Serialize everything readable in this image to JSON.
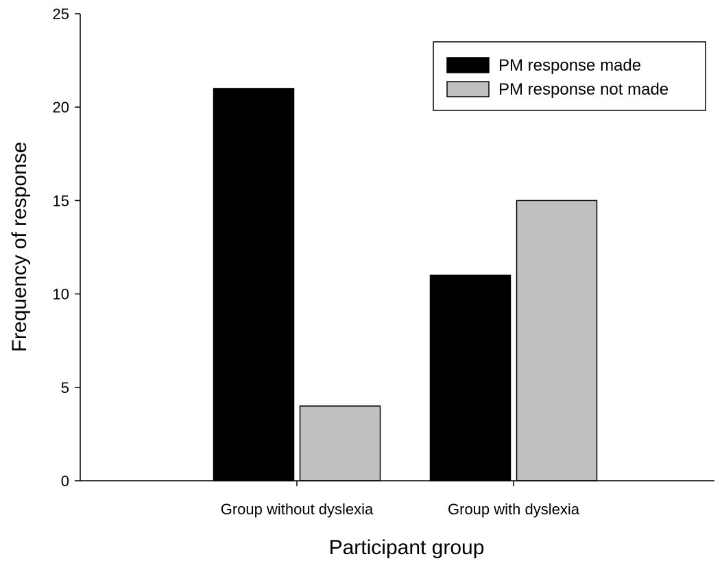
{
  "chart_data": {
    "type": "bar",
    "title": "",
    "xlabel": "Participant group",
    "ylabel": "Frequency of response",
    "categories": [
      "Group without dyslexia",
      "Group with dyslexia"
    ],
    "series": [
      {
        "name": "PM response made",
        "values": [
          21,
          11
        ],
        "color": "#000000"
      },
      {
        "name": "PM response not made",
        "values": [
          4,
          15
        ],
        "color": "#c0c0c0"
      }
    ],
    "ylim": [
      0,
      25
    ],
    "yticks": [
      "0",
      "5",
      "10",
      "15",
      "20",
      "25"
    ],
    "grid": false,
    "legend": "top-right"
  }
}
